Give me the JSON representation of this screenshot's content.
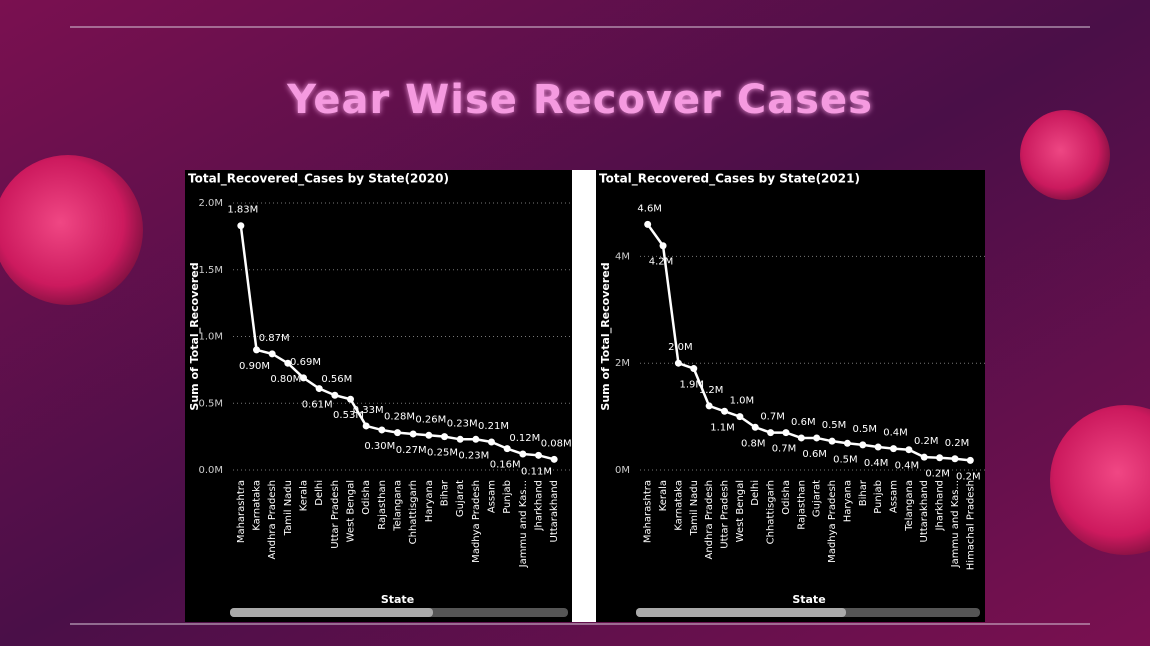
{
  "title": "Year Wise Recover Cases",
  "chart_data": [
    {
      "type": "line",
      "title": "Total_Recovered_Cases by State(2020)",
      "x_label": "State",
      "y_label": "Sum of Total_Recovered",
      "color": "#ffffff",
      "categories": [
        "Maharashtra",
        "Karnataka",
        "Andhra Pradesh",
        "Tamil Nadu",
        "Kerala",
        "Delhi",
        "Uttar Pradesh",
        "West Bengal",
        "Odisha",
        "Rajasthan",
        "Telangana",
        "Chhattisgarh",
        "Haryana",
        "Bihar",
        "Gujarat",
        "Madhya Pradesh",
        "Assam",
        "Punjab",
        "Jammu and Kas...",
        "Jharkhand",
        "Uttarakhand"
      ],
      "values": [
        1830000,
        900000,
        870000,
        800000,
        690000,
        610000,
        560000,
        530000,
        330000,
        300000,
        280000,
        270000,
        260000,
        250000,
        230000,
        230000,
        210000,
        160000,
        120000,
        110000,
        80000
      ],
      "value_labels": [
        "1.83M",
        "0.90M",
        "0.87M",
        "0.80M",
        "0.69M",
        "0.61M",
        "0.56M",
        "0.53M",
        "0.33M",
        "0.30M",
        "0.28M",
        "0.27M",
        "0.26M",
        "0.25M",
        "0.23M",
        "0.23M",
        "0.21M",
        "0.16M",
        "0.12M",
        "0.11M",
        "0.08M"
      ],
      "ylim": [
        0,
        2000000
      ],
      "yticks": [
        {
          "value": 0,
          "label": "0.0M"
        },
        {
          "value": 500000,
          "label": "0.5M"
        },
        {
          "value": 1000000,
          "label": "1.0M"
        },
        {
          "value": 1500000,
          "label": "1.5M"
        },
        {
          "value": 2000000,
          "label": "2.0M"
        }
      ],
      "grid": true
    },
    {
      "type": "line",
      "title": "Total_Recovered_Cases by State(2021)",
      "x_label": "State",
      "y_label": "Sum of Total_Recovered",
      "color": "#ffffff",
      "categories": [
        "Maharashtra",
        "Kerala",
        "Karnataka",
        "Tamil Nadu",
        "Andhra Pradesh",
        "Uttar Pradesh",
        "West Bengal",
        "Delhi",
        "Chhattisgarh",
        "Odisha",
        "Rajasthan",
        "Gujarat",
        "Madhya Pradesh",
        "Haryana",
        "Bihar",
        "Punjab",
        "Assam",
        "Telangana",
        "Uttarakhand",
        "Jharkhand",
        "Jammu and Kas...",
        "Himachal Pradesh"
      ],
      "values": [
        4600000,
        4200000,
        2000000,
        1900000,
        1200000,
        1100000,
        1000000,
        800000,
        700000,
        700000,
        600000,
        600000,
        540000,
        500000,
        470000,
        430000,
        400000,
        380000,
        240000,
        230000,
        210000,
        180000
      ],
      "value_labels": [
        "4.6M",
        "4.2M",
        "2.0M",
        "1.9M",
        "1.2M",
        "1.1M",
        "1.0M",
        "0.8M",
        "0.7M",
        "0.7M",
        "0.6M",
        "0.6M",
        "0.5M",
        "0.5M",
        "0.5M",
        "0.4M",
        "0.4M",
        "0.4M",
        "0.2M",
        "0.2M",
        "0.2M",
        "0.2M"
      ],
      "ylim": [
        0,
        5000000
      ],
      "yticks": [
        {
          "value": 0,
          "label": "0M"
        },
        {
          "value": 2000000,
          "label": "2M"
        },
        {
          "value": 4000000,
          "label": "4M"
        }
      ],
      "grid": true
    }
  ]
}
